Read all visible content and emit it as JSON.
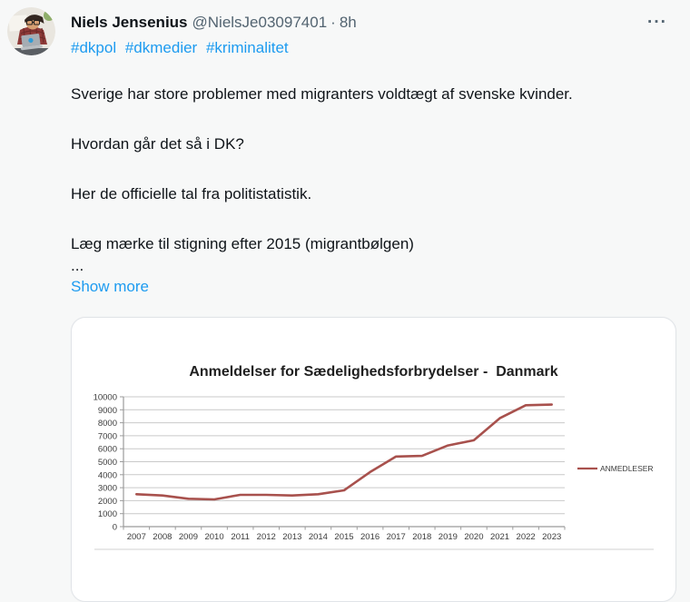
{
  "tweet": {
    "author": "Niels Jensenius",
    "handle": "@NielsJe03097401",
    "separator": "·",
    "timestamp": "8h",
    "more_glyph": "···",
    "hashtags": [
      "#dkpol",
      "#dkmedier",
      "#kriminalitet"
    ],
    "paragraphs": [
      "Sverige har store problemer med migranters voldtægt af svenske kvinder.",
      "Hvordan går det så i DK?",
      "Her de officielle tal fra politistatistik.",
      "Læg mærke til stigning efter 2015 (migrantbølgen)"
    ],
    "truncation": "...",
    "show_more": "Show more"
  },
  "colors": {
    "accent_blue": "#1d9bf0",
    "text_primary": "#0f1419",
    "text_secondary": "#536471",
    "chart_line": "#a8514d",
    "card_background": "#ffffff",
    "page_background": "#f7f8f8"
  },
  "chart_data": {
    "type": "line",
    "title": "Anmeldelser for Sædelighedsforbrydelser -  Danmark",
    "categories": [
      "2007",
      "2008",
      "2009",
      "2010",
      "2011",
      "2012",
      "2013",
      "2014",
      "2015",
      "2016",
      "2017",
      "2018",
      "2019",
      "2020",
      "2021",
      "2022",
      "2023"
    ],
    "series": [
      {
        "name": "ANMEDLESER",
        "values": [
          2500,
          2400,
          2150,
          2100,
          2450,
          2450,
          2400,
          2500,
          2800,
          4200,
          5400,
          5450,
          6250,
          6650,
          8350,
          9350,
          9400
        ]
      }
    ],
    "xlabel": "",
    "ylabel": "",
    "ylim": [
      0,
      10000
    ],
    "ytick_step": 1000,
    "grid": true,
    "legend_position": "right",
    "line_color": "#a8514d"
  }
}
